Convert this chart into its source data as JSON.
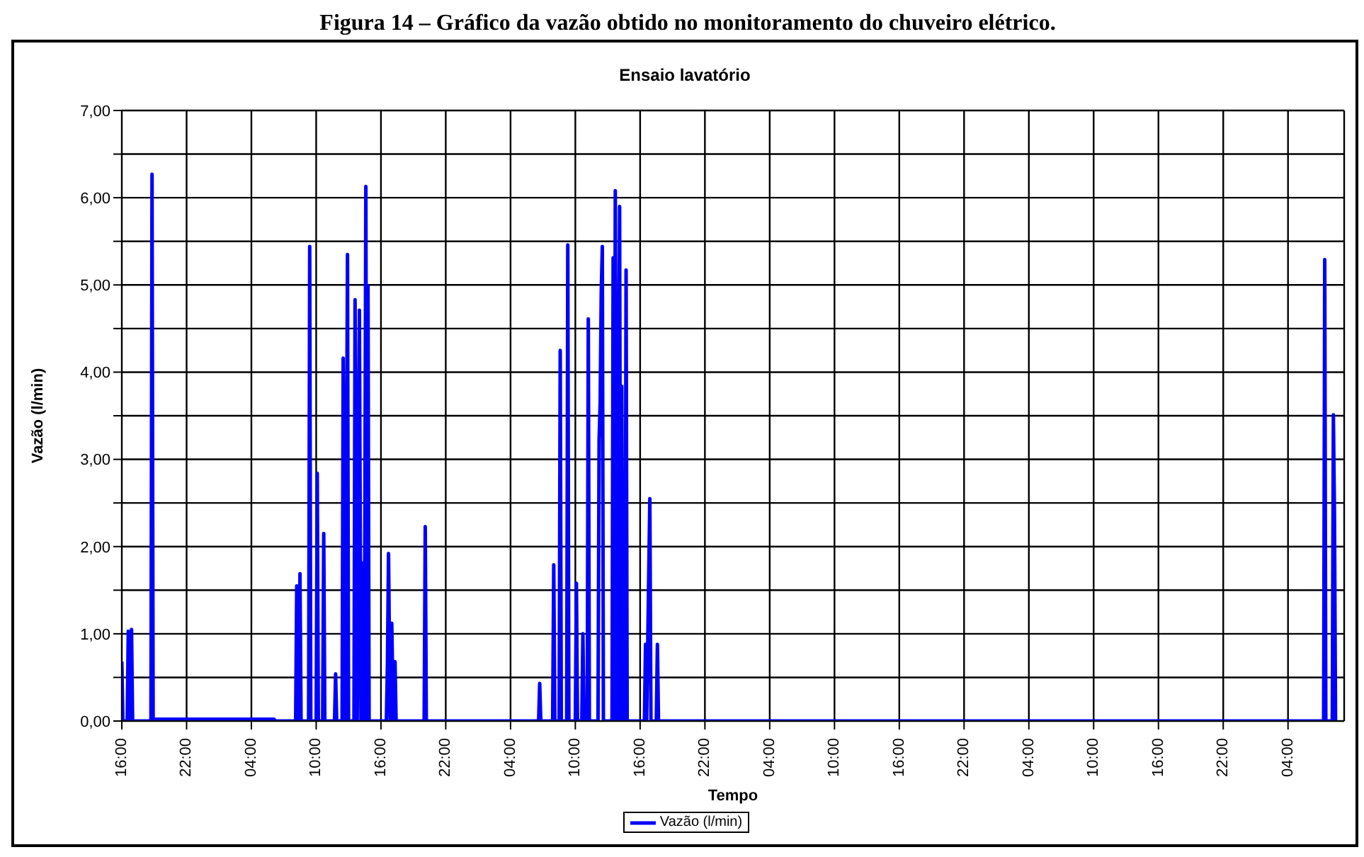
{
  "chart_data": {
    "type": "line",
    "title": "Ensaio lavatório",
    "xlabel": "Tempo",
    "ylabel": "Vazão (l/min)",
    "annotations": [
      "Figura 14 – Gráfico da vazão obtido no monitoramento do chuveiro elétrico."
    ],
    "x": [
      "--01-01T16:00",
      "--01-01T16:06",
      "--01-01T16:30",
      "--01-01T16:36",
      "--01-01T16:45",
      "--01-01T16:54",
      "--01-01T17:00",
      "--01-01T18:42",
      "--01-01T18:48",
      "--01-01T18:54",
      "--01-02T06:06",
      "--01-02T06:12",
      "--01-02T08:06",
      "--01-02T08:12",
      "--01-02T08:21",
      "--01-02T08:30",
      "--01-02T08:36",
      "--01-02T09:18",
      "--01-02T09:24",
      "--01-02T09:30",
      "--01-02T10:00",
      "--01-02T10:06",
      "--01-02T10:12",
      "--01-02T10:36",
      "--01-02T10:42",
      "--01-02T10:48",
      "--01-02T11:42",
      "--01-02T11:48",
      "--01-02T11:54",
      "--01-02T12:24",
      "--01-02T12:30",
      "--01-02T12:42",
      "--01-02T12:54",
      "--01-02T13:00",
      "--01-02T13:30",
      "--01-02T13:36",
      "--01-02T13:48",
      "--01-02T14:00",
      "--01-02T14:09",
      "--01-02T14:18",
      "--01-02T14:27",
      "--01-02T14:36",
      "--01-02T14:42",
      "--01-02T14:48",
      "--01-02T14:54",
      "--01-02T16:30",
      "--01-02T16:36",
      "--01-02T16:42",
      "--01-02T16:51",
      "--01-02T17:00",
      "--01-02T17:09",
      "--01-02T17:18",
      "--01-02T17:24",
      "--01-02T20:00",
      "--01-02T20:06",
      "--01-02T20:12",
      "--01-03T06:36",
      "--01-03T06:42",
      "--01-03T06:48",
      "--01-03T07:54",
      "--01-03T08:00",
      "--01-03T08:06",
      "--01-03T08:30",
      "--01-03T08:36",
      "--01-03T08:42",
      "--01-03T09:12",
      "--01-03T09:18",
      "--01-03T09:24",
      "--01-03T10:00",
      "--01-03T10:06",
      "--01-03T10:12",
      "--01-03T10:36",
      "--01-03T10:42",
      "--01-03T10:48",
      "--01-03T11:06",
      "--01-03T11:12",
      "--01-03T11:18",
      "--01-03T12:06",
      "--01-03T12:12",
      "--01-03T12:18",
      "--01-03T12:24",
      "--01-03T12:30",
      "--01-03T12:36",
      "--01-03T13:24",
      "--01-03T13:30",
      "--01-03T13:36",
      "--01-03T13:42",
      "--01-03T13:54",
      "--01-03T14:06",
      "--01-03T14:12",
      "--01-03T14:18",
      "--01-03T14:24",
      "--01-03T14:30",
      "--01-03T14:36",
      "--01-03T14:42",
      "--01-03T14:48",
      "--01-03T16:24",
      "--01-03T16:30",
      "--01-03T16:36",
      "--01-03T16:54",
      "--01-03T17:00",
      "--01-03T17:30",
      "--01-03T17:36",
      "--01-03T17:42",
      "--01-06T07:18",
      "--01-06T07:24",
      "--01-06T07:30",
      "--01-06T08:06",
      "--01-06T08:12",
      "--01-06T08:18",
      "--01-06T08:24"
    ],
    "series": [
      {
        "name": "Vazão (l/min)",
        "color": "#0000ff",
        "values": [
          0.68,
          0,
          0,
          1.03,
          0,
          1.05,
          0,
          0,
          6.27,
          0.02,
          0.02,
          0,
          0,
          1.55,
          0,
          1.69,
          0,
          0,
          5.44,
          0,
          0,
          2.84,
          0,
          0,
          2.15,
          0,
          0,
          0.54,
          0,
          0,
          4.16,
          0,
          5.35,
          0,
          0,
          4.83,
          0,
          4.71,
          0,
          1.81,
          0,
          6.13,
          0,
          4.99,
          0,
          0,
          0.65,
          1.92,
          0,
          1.12,
          0,
          0.68,
          0,
          0,
          2.23,
          0,
          0,
          0.43,
          0,
          0,
          1.79,
          0,
          0,
          4.25,
          0,
          0,
          5.46,
          0,
          0,
          1.58,
          0,
          0,
          1.0,
          0,
          0,
          4.61,
          0,
          0,
          3.22,
          3.65,
          4.91,
          5.44,
          0,
          0,
          5.31,
          0,
          6.08,
          0,
          5.9,
          0,
          3.84,
          0,
          1.58,
          0,
          5.17,
          0,
          0,
          0.88,
          0,
          2.55,
          0,
          0,
          0.88,
          0,
          0,
          5.29,
          0,
          0,
          3.51,
          2.39,
          0
        ]
      }
    ],
    "xlim": [
      "--01-01T16:00",
      "--01-06T09:12"
    ],
    "xticks": [
      {
        "value": "--01-01T16:00",
        "label": "16:00"
      },
      {
        "value": "--01-01T22:00",
        "label": "22:00"
      },
      {
        "value": "--01-02T04:00",
        "label": "04:00"
      },
      {
        "value": "--01-02T10:00",
        "label": "10:00"
      },
      {
        "value": "--01-02T16:00",
        "label": "16:00"
      },
      {
        "value": "--01-02T22:00",
        "label": "22:00"
      },
      {
        "value": "--01-03T04:00",
        "label": "04:00"
      },
      {
        "value": "--01-03T10:00",
        "label": "10:00"
      },
      {
        "value": "--01-03T16:00",
        "label": "16:00"
      },
      {
        "value": "--01-03T22:00",
        "label": "22:00"
      },
      {
        "value": "--01-04T04:00",
        "label": "04:00"
      },
      {
        "value": "--01-04T10:00",
        "label": "10:00"
      },
      {
        "value": "--01-04T16:00",
        "label": "16:00"
      },
      {
        "value": "--01-04T22:00",
        "label": "22:00"
      },
      {
        "value": "--01-05T04:00",
        "label": "04:00"
      },
      {
        "value": "--01-05T10:00",
        "label": "10:00"
      },
      {
        "value": "--01-05T16:00",
        "label": "16:00"
      },
      {
        "value": "--01-05T22:00",
        "label": "22:00"
      },
      {
        "value": "--01-06T04:00",
        "label": "04:00"
      }
    ],
    "ylim": [
      0,
      7
    ],
    "yticks": [
      {
        "value": 0,
        "label": "0,00"
      },
      {
        "value": 0.5,
        "label": null
      },
      {
        "value": 1,
        "label": "1,00"
      },
      {
        "value": 1.5,
        "label": null
      },
      {
        "value": 2,
        "label": "2,00"
      },
      {
        "value": 2.5,
        "label": null
      },
      {
        "value": 3,
        "label": "3,00"
      },
      {
        "value": 3.5,
        "label": null
      },
      {
        "value": 4,
        "label": "4,00"
      },
      {
        "value": 4.5,
        "label": null
      },
      {
        "value": 5,
        "label": "5,00"
      },
      {
        "value": 5.5,
        "label": null
      },
      {
        "value": 6,
        "label": "6,00"
      },
      {
        "value": 6.5,
        "label": null
      },
      {
        "value": 7,
        "label": "7,00"
      }
    ],
    "grid": true,
    "legend": "bottom",
    "marker": "none",
    "line_style": "solid"
  }
}
